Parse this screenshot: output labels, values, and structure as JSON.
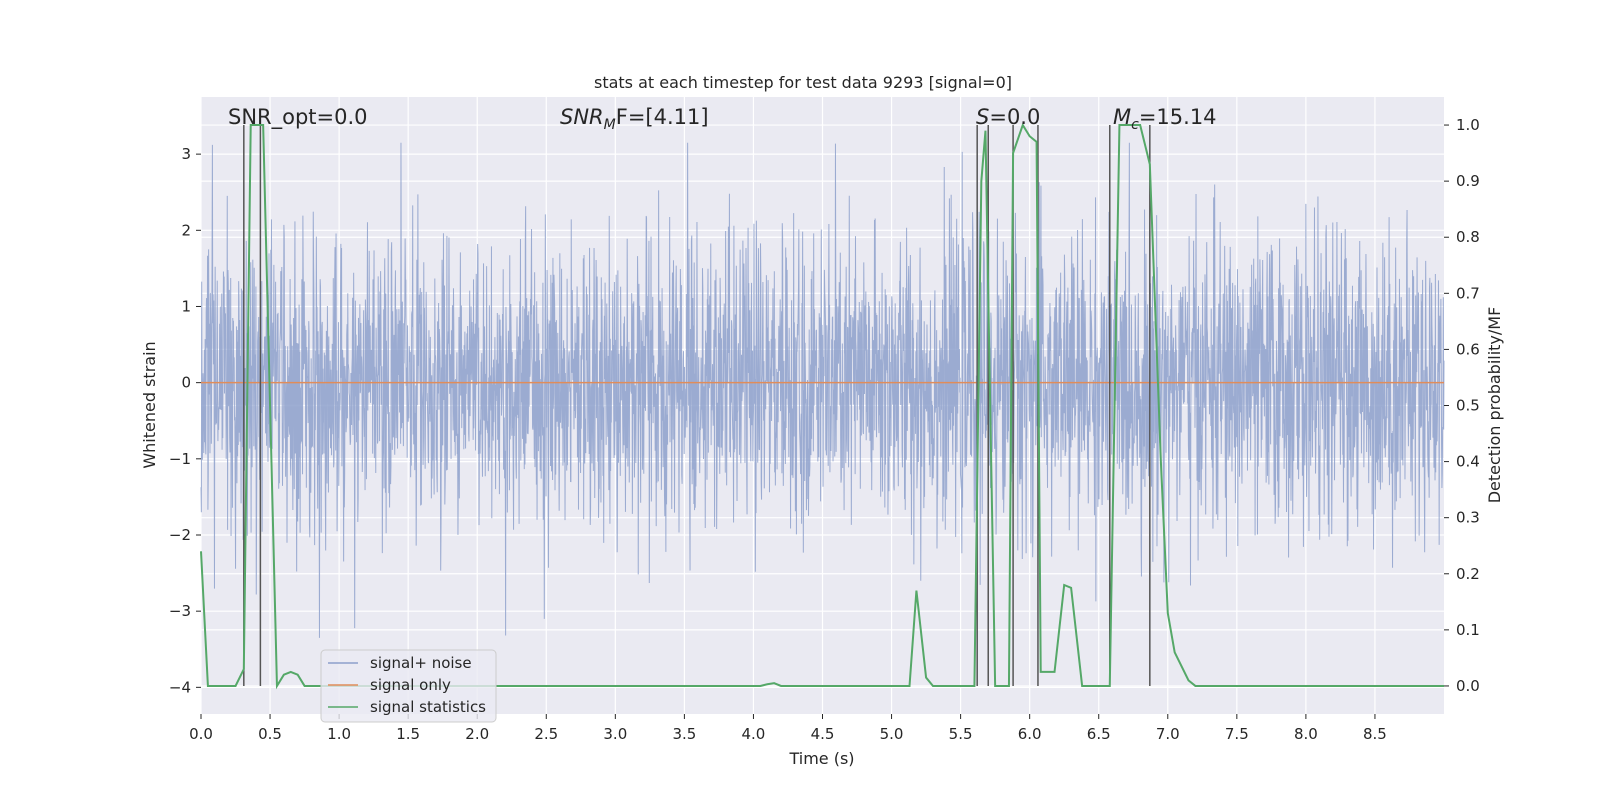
{
  "chart_data": {
    "type": "line",
    "title": "stats at each timestep for test data 9293 [signal=0]",
    "xlabel": "Time (s)",
    "ylabel_left": "Whitened strain",
    "ylabel_right": "Detection probability/MF",
    "xlim": [
      0.0,
      9.0
    ],
    "ylim_left": [
      -4.35,
      3.75
    ],
    "ylim_right": [
      -0.05,
      1.05
    ],
    "x_ticks": [
      "0.0",
      "0.5",
      "1.0",
      "1.5",
      "2.0",
      "2.5",
      "3.0",
      "3.5",
      "4.0",
      "4.5",
      "5.0",
      "5.5",
      "6.0",
      "6.5",
      "7.0",
      "7.5",
      "8.0",
      "8.5"
    ],
    "y_left_ticks": [
      "-4",
      "-3",
      "-2",
      "-1",
      "0",
      "1",
      "2",
      "3"
    ],
    "y_right_ticks": [
      "0.0",
      "0.1",
      "0.2",
      "0.3",
      "0.4",
      "0.5",
      "0.6",
      "0.7",
      "0.8",
      "0.9",
      "1.0"
    ],
    "annotations": {
      "snr_opt": "SNR_opt=0.0",
      "snr_mf_prefix": "SNR",
      "snr_mf_sub": "M",
      "snr_mf_suffix": "F=[4.11]",
      "s_label": "S",
      "s_value": "=0.0",
      "mc_label": "M",
      "mc_sub": "c",
      "mc_value": "=15.14"
    },
    "legend": {
      "position": "lower-left",
      "entries": [
        {
          "label": "signal+ noise",
          "color": "#8da0cb"
        },
        {
          "label": "signal only",
          "color": "#e08c5a"
        },
        {
          "label": "signal statistics",
          "color": "#55a868"
        }
      ]
    },
    "colors": {
      "background": "#eaeaf2",
      "grid": "#ffffff",
      "noise": "#8da0cb",
      "signal": "#e08c5a",
      "stats": "#55a868",
      "vlines": "#555555"
    },
    "series": [
      {
        "name": "signal+ noise",
        "axis": "left",
        "description": "dense whitened strain noise, roughly Gaussian, amplitude mostly within -2.6 to 2.9, extremes about -3.35 to 3.15",
        "envelope_core": [
          -1.25,
          1.2
        ],
        "envelope_peaks": [
          -2.7,
          3.15
        ]
      },
      {
        "name": "signal only",
        "axis": "left",
        "x": [
          0.0,
          9.0
        ],
        "y": [
          0.0,
          0.0
        ]
      },
      {
        "name": "signal statistics",
        "axis": "right",
        "x": [
          0.0,
          0.05,
          0.25,
          0.31,
          0.36,
          0.4,
          0.45,
          0.5,
          0.55,
          0.6,
          0.65,
          0.7,
          0.75,
          0.8,
          1.0,
          1.5,
          2.0,
          2.5,
          3.0,
          3.5,
          4.0,
          4.05,
          4.1,
          4.15,
          4.2,
          4.5,
          5.0,
          5.13,
          5.18,
          5.25,
          5.3,
          5.5,
          5.6,
          5.65,
          5.68,
          5.7,
          5.75,
          5.85,
          5.88,
          5.95,
          6.0,
          6.05,
          6.08,
          6.12,
          6.18,
          6.25,
          6.3,
          6.38,
          6.45,
          6.55,
          6.58,
          6.65,
          6.75,
          6.8,
          6.87,
          6.95,
          7.0,
          7.05,
          7.15,
          7.2,
          7.25,
          7.5,
          8.0,
          8.5,
          9.0
        ],
        "y": [
          0.24,
          0.0,
          0.0,
          0.03,
          1.0,
          1.0,
          1.0,
          0.5,
          0.0,
          0.02,
          0.025,
          0.02,
          0.0,
          0.0,
          0.0,
          0.0,
          0.0,
          0.0,
          0.0,
          0.0,
          0.0,
          0.0,
          0.003,
          0.005,
          0.0,
          0.0,
          0.0,
          0.0,
          0.17,
          0.015,
          0.0,
          0.0,
          0.0,
          0.9,
          0.99,
          0.7,
          0.0,
          0.0,
          0.95,
          1.0,
          0.98,
          0.97,
          0.025,
          0.025,
          0.025,
          0.18,
          0.175,
          0.0,
          0.0,
          0.0,
          0.0,
          1.0,
          1.0,
          1.0,
          0.93,
          0.4,
          0.13,
          0.06,
          0.01,
          0.0,
          0.0,
          0.0,
          0.0,
          0.0,
          0.0
        ]
      }
    ],
    "vertical_lines_x": [
      0.31,
      0.43,
      5.62,
      5.7,
      5.88,
      6.06,
      6.58,
      6.87
    ]
  }
}
